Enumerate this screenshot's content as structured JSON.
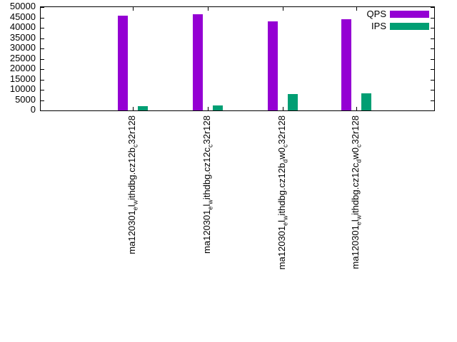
{
  "chart_data": {
    "type": "bar",
    "title": "",
    "xlabel": "",
    "ylabel": "",
    "categories": [
      "ma120301_el_withdbg.cz12b_c32r128",
      "ma120301_el_withdbg.cz12c_c32r128",
      "ma120301_el_withdbg.cz12b_dw0_c32r128",
      "ma120301_el_withdbg.cz12c_dw0_c32r128"
    ],
    "series": [
      {
        "name": "QPS",
        "color": "#9400d3",
        "values": [
          46000,
          46500,
          43000,
          44000
        ]
      },
      {
        "name": "IPS",
        "color": "#009e73",
        "values": [
          2000,
          2300,
          8000,
          8400
        ]
      }
    ],
    "ylim": [
      0,
      50000
    ],
    "yticks": [
      0,
      5000,
      10000,
      15000,
      20000,
      25000,
      30000,
      35000,
      40000,
      45000,
      50000
    ],
    "grid": false,
    "legend_position": "top-right",
    "x_label_rotation_degrees": -90
  }
}
